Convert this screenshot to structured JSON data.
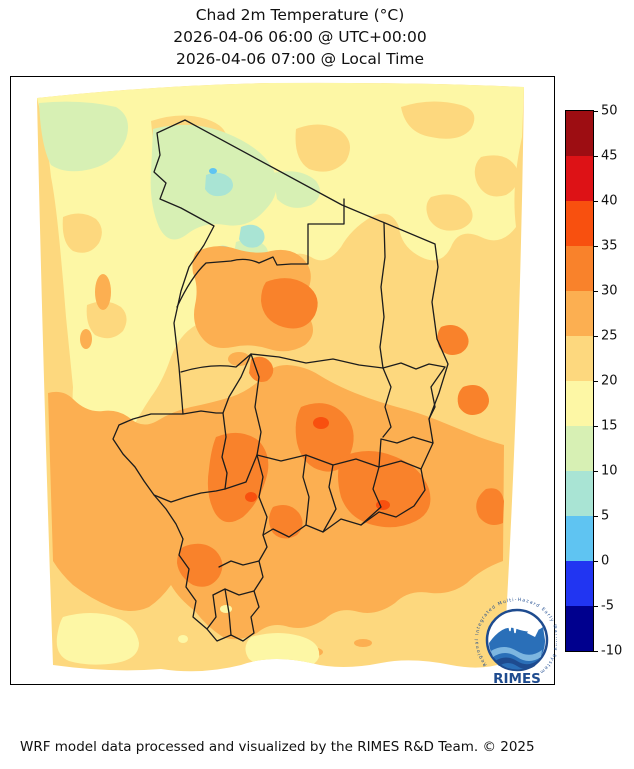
{
  "title": {
    "line1": "Chad 2m Temperature (°C)",
    "line2": "2026-04-06 06:00 @ UTC+00:00",
    "line3": "2026-04-06 07:00 @ Local Time"
  },
  "footer": {
    "credit": "WRF model data processed and visualized by the RIMES R&D Team. © 2025"
  },
  "logo": {
    "org": "RIMES",
    "ring_text": "Regional Integrated Multi-Hazard Early Warning System"
  },
  "colorbar": {
    "min": -10,
    "max": 50,
    "step": 5,
    "tick_labels": [
      "50",
      "45",
      "40",
      "35",
      "30",
      "25",
      "20",
      "15",
      "10",
      "5",
      "0",
      "-5",
      "-10"
    ],
    "bands_top_to_bottom": [
      {
        "range": "45 to 50",
        "color": "#9d0d12"
      },
      {
        "range": "40 to 45",
        "color": "#dd1216"
      },
      {
        "range": "35 to 40",
        "color": "#f8500f"
      },
      {
        "range": "30 to 35",
        "color": "#f9822b"
      },
      {
        "range": "25 to 30",
        "color": "#fcaf51"
      },
      {
        "range": "20 to 25",
        "color": "#fdd87e"
      },
      {
        "range": "15 to 20",
        "color": "#fdf7a5"
      },
      {
        "range": "10 to 15",
        "color": "#d7f0b4"
      },
      {
        "range": "5 to 10",
        "color": "#a9e4d4"
      },
      {
        "range": "0 to 5",
        "color": "#5fc4f2"
      },
      {
        "range": "-5 to 0",
        "color": "#2135f2"
      },
      {
        "range": "-10 to -5",
        "color": "#00008e"
      }
    ]
  },
  "map": {
    "palette": {
      "b0": "#5fc4f2",
      "b5": "#a9e4d4",
      "b10": "#d7f0b4",
      "b15": "#fdf7a5",
      "b20": "#fdd87e",
      "b25": "#fcaf51",
      "b30": "#f9822b",
      "b35": "#f8500f"
    },
    "border_color": "#1c1c1c",
    "logo_blue_dark": "#1e4b8f",
    "logo_blue_mid": "#2a6fb8",
    "logo_blue_light": "#7db6e0"
  },
  "chart_data": {
    "type": "heatmap",
    "title": "Chad 2m Temperature (°C)",
    "valid_time_utc": "2026-04-06 06:00 @ UTC+00:00",
    "valid_time_local": "2026-04-06 07:00 @ Local Time",
    "variable": "2m air temperature",
    "units": "°C",
    "colorbar_range": [
      -10,
      50
    ],
    "colorbar_tick_step": 5,
    "legend_position": "right",
    "value_bands_visible_on_map": [
      "0–5",
      "5–10",
      "10–15",
      "15–20",
      "20–25",
      "25–30",
      "30–35"
    ]
  }
}
